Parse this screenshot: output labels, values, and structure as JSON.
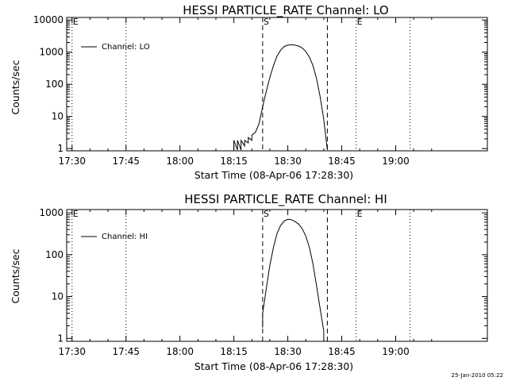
{
  "chart_data": [
    {
      "type": "line",
      "title": "HESSI PARTICLE_RATE Channel: LO",
      "xlabel": "Start Time (08-Apr-06 17:28:30)",
      "ylabel": "Counts/sec",
      "yscale": "log",
      "ylim": [
        0.85,
        12000
      ],
      "xlim_minutes": [
        0,
        117
      ],
      "x_ticks": [
        "17:30",
        "17:45",
        "18:00",
        "18:15",
        "18:30",
        "18:45",
        "19:00"
      ],
      "y_ticks": [
        "1",
        "10",
        "100",
        "1000",
        "10000"
      ],
      "legend": {
        "placement": "top-left",
        "entries": [
          "Channel: LO"
        ]
      },
      "markers": [
        {
          "label": "E",
          "time": "17:30",
          "style": "dotted"
        },
        {
          "label": "",
          "time": "17:45",
          "style": "dotted"
        },
        {
          "label": "S",
          "time": "18:23",
          "style": "dashed"
        },
        {
          "label": "",
          "time": "18:41",
          "style": "dashed"
        },
        {
          "label": "E",
          "time": "18:49",
          "style": "dotted"
        },
        {
          "label": "",
          "time": "19:04",
          "style": "dotted"
        }
      ],
      "series": [
        {
          "name": "Channel: LO",
          "points": [
            [
              "18:15",
              0.9
            ],
            [
              "18:15",
              1.8
            ],
            [
              "18:16",
              0.9
            ],
            [
              "18:16",
              1.8
            ],
            [
              "18:17",
              0.9
            ],
            [
              "18:17",
              1.8
            ],
            [
              "18:18",
              1.2
            ],
            [
              "18:18",
              1.8
            ],
            [
              "18:19",
              1.5
            ],
            [
              "18:19",
              2.2
            ],
            [
              "18:20",
              1.8
            ],
            [
              "18:20",
              2.6
            ],
            [
              "18:21",
              3.2
            ],
            [
              "18:22",
              6
            ],
            [
              "18:23",
              20
            ],
            [
              "18:24",
              60
            ],
            [
              "18:25",
              160
            ],
            [
              "18:26",
              380
            ],
            [
              "18:27",
              750
            ],
            [
              "18:28",
              1150
            ],
            [
              "18:29",
              1500
            ],
            [
              "18:30",
              1650
            ],
            [
              "18:31",
              1700
            ],
            [
              "18:32",
              1650
            ],
            [
              "18:33",
              1550
            ],
            [
              "18:34",
              1350
            ],
            [
              "18:35",
              1050
            ],
            [
              "18:36",
              700
            ],
            [
              "18:37",
              380
            ],
            [
              "18:38",
              150
            ],
            [
              "18:39",
              40
            ],
            [
              "18:40",
              8
            ],
            [
              "18:41",
              0.9
            ]
          ]
        }
      ]
    },
    {
      "type": "line",
      "title": "HESSI PARTICLE_RATE Channel: HI",
      "xlabel": "Start Time (08-Apr-06 17:28:30)",
      "ylabel": "Counts/sec",
      "yscale": "log",
      "ylim": [
        0.85,
        1200
      ],
      "xlim_minutes": [
        0,
        117
      ],
      "x_ticks": [
        "17:30",
        "17:45",
        "18:00",
        "18:15",
        "18:30",
        "18:45",
        "19:00"
      ],
      "y_ticks": [
        "1",
        "10",
        "100",
        "1000"
      ],
      "legend": {
        "placement": "top-left",
        "entries": [
          "Channel: HI"
        ]
      },
      "markers": [
        {
          "label": "E",
          "time": "17:30",
          "style": "dotted"
        },
        {
          "label": "",
          "time": "17:45",
          "style": "dotted"
        },
        {
          "label": "S",
          "time": "18:23",
          "style": "dashed"
        },
        {
          "label": "",
          "time": "18:41",
          "style": "dashed"
        },
        {
          "label": "E",
          "time": "18:49",
          "style": "dotted"
        },
        {
          "label": "",
          "time": "19:04",
          "style": "dotted"
        }
      ],
      "series": [
        {
          "name": "Channel: HI",
          "points": [
            [
              "18:23",
              1.8
            ],
            [
              "18:23",
              4
            ],
            [
              "18:24",
              15
            ],
            [
              "18:25",
              55
            ],
            [
              "18:26",
              150
            ],
            [
              "18:27",
              320
            ],
            [
              "18:28",
              500
            ],
            [
              "18:29",
              640
            ],
            [
              "18:30",
              700
            ],
            [
              "18:31",
              690
            ],
            [
              "18:32",
              620
            ],
            [
              "18:33",
              540
            ],
            [
              "18:34",
              420
            ],
            [
              "18:35",
              280
            ],
            [
              "18:36",
              150
            ],
            [
              "18:37",
              60
            ],
            [
              "18:38",
              18
            ],
            [
              "18:39",
              5
            ],
            [
              "18:40",
              1.5
            ],
            [
              "18:40",
              0.9
            ]
          ]
        }
      ]
    }
  ],
  "footer": {
    "stamp": "25-Jan-2010 05:22"
  }
}
